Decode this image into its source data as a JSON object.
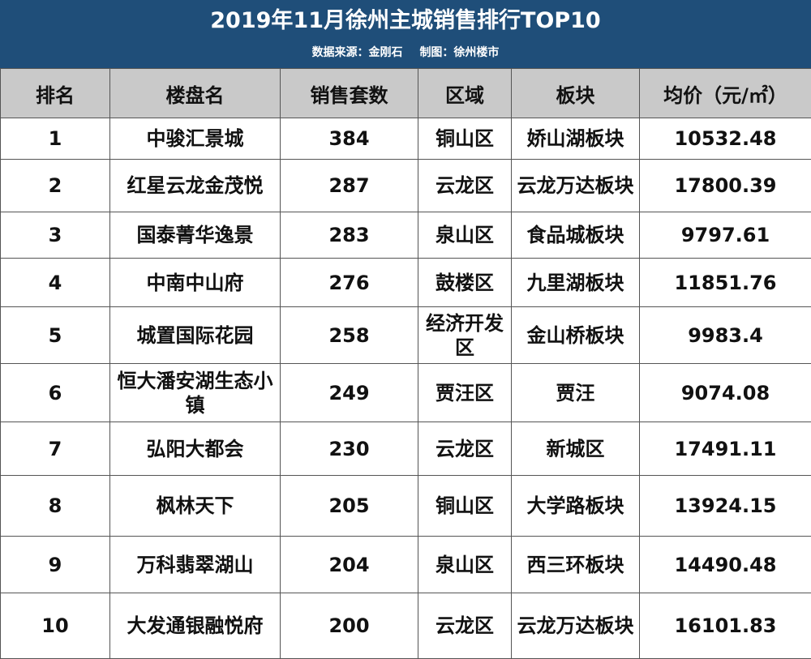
{
  "header": {
    "title": "2019年11月徐州主城销售排行TOP10",
    "source": "数据来源：金刚石",
    "maker": "制图：徐州楼市"
  },
  "columns": [
    "排名",
    "楼盘名",
    "销售套数",
    "区域",
    "板块",
    "均价（元/㎡）"
  ],
  "rows": [
    {
      "rank": "1",
      "name": "中骏汇景城",
      "sales": "384",
      "district": "铜山区",
      "block": "娇山湖板块",
      "price": "10532.48"
    },
    {
      "rank": "2",
      "name": "红星云龙金茂悦",
      "sales": "287",
      "district": "云龙区",
      "block": "云龙万达板块",
      "price": "17800.39"
    },
    {
      "rank": "3",
      "name": "国泰菁华逸景",
      "sales": "283",
      "district": "泉山区",
      "block": "食品城板块",
      "price": "9797.61"
    },
    {
      "rank": "4",
      "name": "中南中山府",
      "sales": "276",
      "district": "鼓楼区",
      "block": "九里湖板块",
      "price": "11851.76"
    },
    {
      "rank": "5",
      "name": "城置国际花园",
      "sales": "258",
      "district": "经济开发区",
      "block": "金山桥板块",
      "price": "9983.4"
    },
    {
      "rank": "6",
      "name": "恒大潘安湖生态小镇",
      "sales": "249",
      "district": "贾汪区",
      "block": "贾汪",
      "price": "9074.08"
    },
    {
      "rank": "7",
      "name": "弘阳大都会",
      "sales": "230",
      "district": "云龙区",
      "block": "新城区",
      "price": "17491.11"
    },
    {
      "rank": "8",
      "name": "枫林天下",
      "sales": "205",
      "district": "铜山区",
      "block": "大学路板块",
      "price": "13924.15"
    },
    {
      "rank": "9",
      "name": "万科翡翠湖山",
      "sales": "204",
      "district": "泉山区",
      "block": "西三环板块",
      "price": "14490.48"
    },
    {
      "rank": "10",
      "name": "大发通银融悦府",
      "sales": "200",
      "district": "云龙区",
      "block": "云龙万达板块",
      "price": "16101.83"
    }
  ]
}
